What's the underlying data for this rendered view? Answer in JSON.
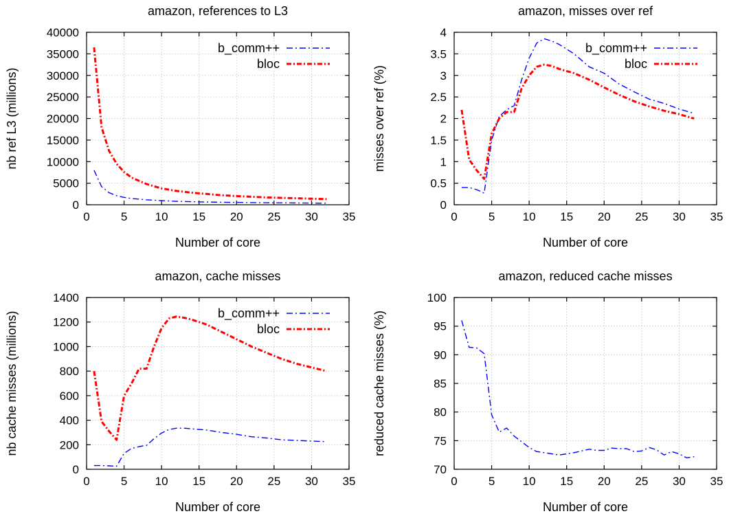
{
  "colors": {
    "b_comm": "#0000ff",
    "bloc": "#ff0000"
  },
  "chart_data": [
    {
      "type": "line",
      "title": "amazon, references to L3",
      "xlabel": "Number of core",
      "ylabel": "nb ref L3 (millions)",
      "xlim": [
        0,
        35
      ],
      "ylim": [
        0,
        40000
      ],
      "xticks": [
        0,
        5,
        10,
        15,
        20,
        25,
        30,
        35
      ],
      "yticks": [
        0,
        5000,
        10000,
        15000,
        20000,
        25000,
        30000,
        35000,
        40000
      ],
      "grid": true,
      "legend": "top-right",
      "series": [
        {
          "name": "b_comm++",
          "color": "#0000ff",
          "style": "dashdot",
          "x": [
            1,
            2,
            3,
            4,
            5,
            6,
            8,
            10,
            12,
            14,
            16,
            18,
            20,
            22,
            24,
            26,
            28,
            30,
            32
          ],
          "y": [
            8000,
            4200,
            2800,
            2100,
            1700,
            1450,
            1150,
            950,
            800,
            700,
            640,
            580,
            540,
            500,
            470,
            440,
            410,
            390,
            370
          ]
        },
        {
          "name": "bloc",
          "color": "#ff0000",
          "style": "dotdash-thick",
          "x": [
            1,
            2,
            3,
            4,
            5,
            6,
            8,
            10,
            12,
            14,
            16,
            18,
            20,
            22,
            24,
            26,
            28,
            30,
            32
          ],
          "y": [
            36500,
            18000,
            12500,
            9500,
            7600,
            6300,
            4800,
            3800,
            3200,
            2800,
            2500,
            2200,
            2000,
            1850,
            1700,
            1600,
            1500,
            1400,
            1300
          ]
        }
      ]
    },
    {
      "type": "line",
      "title": "amazon, misses over ref",
      "xlabel": "Number of core",
      "ylabel": "misses over ref (%)",
      "xlim": [
        0,
        35
      ],
      "ylim": [
        0,
        4
      ],
      "xticks": [
        0,
        5,
        10,
        15,
        20,
        25,
        30,
        35
      ],
      "yticks": [
        0,
        0.5,
        1,
        1.5,
        2,
        2.5,
        3,
        3.5,
        4
      ],
      "grid": true,
      "legend": "top-right",
      "series": [
        {
          "name": "b_comm++",
          "color": "#0000ff",
          "style": "dashdot",
          "x": [
            1,
            2,
            3,
            4,
            5,
            6,
            7,
            8,
            9,
            10,
            11,
            12,
            13,
            14,
            16,
            18,
            20,
            22,
            24,
            26,
            28,
            30,
            32
          ],
          "y": [
            0.4,
            0.4,
            0.35,
            0.27,
            1.5,
            2.05,
            2.2,
            2.3,
            2.9,
            3.4,
            3.75,
            3.85,
            3.8,
            3.72,
            3.5,
            3.2,
            3.05,
            2.8,
            2.62,
            2.45,
            2.35,
            2.22,
            2.12
          ]
        },
        {
          "name": "bloc",
          "color": "#ff0000",
          "style": "dotdash-thick",
          "x": [
            1,
            2,
            3,
            4,
            5,
            6,
            7,
            8,
            9,
            10,
            11,
            12,
            13,
            14,
            16,
            18,
            20,
            22,
            24,
            26,
            28,
            30,
            32
          ],
          "y": [
            2.2,
            1.05,
            0.8,
            0.6,
            1.65,
            2.0,
            2.15,
            2.15,
            2.7,
            3.0,
            3.2,
            3.25,
            3.22,
            3.15,
            3.05,
            2.9,
            2.72,
            2.55,
            2.4,
            2.28,
            2.18,
            2.1,
            2.0
          ]
        }
      ]
    },
    {
      "type": "line",
      "title": "amazon, cache misses",
      "xlabel": "Number of core",
      "ylabel": "nb cache misses (millions)",
      "xlim": [
        0,
        35
      ],
      "ylim": [
        0,
        1400
      ],
      "xticks": [
        0,
        5,
        10,
        15,
        20,
        25,
        30,
        35
      ],
      "yticks": [
        0,
        200,
        400,
        600,
        800,
        1000,
        1200,
        1400
      ],
      "grid": true,
      "legend": "top-right",
      "series": [
        {
          "name": "b_comm++",
          "color": "#0000ff",
          "style": "dashdot",
          "x": [
            1,
            2,
            3,
            4,
            5,
            6,
            7,
            8,
            9,
            10,
            11,
            12,
            13,
            14,
            16,
            18,
            20,
            22,
            24,
            26,
            28,
            30,
            32
          ],
          "y": [
            30,
            30,
            28,
            25,
            130,
            170,
            185,
            195,
            250,
            295,
            325,
            335,
            335,
            330,
            320,
            300,
            285,
            265,
            255,
            240,
            235,
            230,
            225
          ]
        },
        {
          "name": "bloc",
          "color": "#ff0000",
          "style": "dotdash-thick",
          "x": [
            1,
            2,
            3,
            4,
            5,
            6,
            7,
            8,
            9,
            10,
            11,
            12,
            13,
            14,
            16,
            18,
            20,
            22,
            24,
            26,
            28,
            30,
            32
          ],
          "y": [
            800,
            390,
            310,
            240,
            600,
            700,
            820,
            820,
            1000,
            1150,
            1230,
            1245,
            1235,
            1220,
            1180,
            1120,
            1060,
            1000,
            950,
            900,
            860,
            830,
            800
          ]
        }
      ]
    },
    {
      "type": "line",
      "title": "amazon, reduced cache misses",
      "xlabel": "Number of core",
      "ylabel": "reduced cache misses (%)",
      "xlim": [
        0,
        35
      ],
      "ylim": [
        70,
        100
      ],
      "xticks": [
        0,
        5,
        10,
        15,
        20,
        25,
        30,
        35
      ],
      "yticks": [
        70,
        75,
        80,
        85,
        90,
        95,
        100
      ],
      "grid": true,
      "legend": "none",
      "series": [
        {
          "name": "",
          "color": "#0000ff",
          "style": "dashdot",
          "x": [
            1,
            2,
            3,
            4,
            5,
            6,
            7,
            8,
            9,
            10,
            11,
            12,
            13,
            14,
            15,
            16,
            17,
            18,
            19,
            20,
            21,
            22,
            23,
            24,
            25,
            26,
            27,
            28,
            29,
            30,
            31,
            32
          ],
          "y": [
            96,
            91.3,
            91.2,
            90.2,
            79.5,
            76.5,
            77.2,
            75.8,
            74.8,
            73.8,
            73.1,
            72.9,
            72.7,
            72.5,
            72.7,
            72.9,
            73.2,
            73.5,
            73.3,
            73.3,
            73.7,
            73.6,
            73.6,
            73.1,
            73.2,
            73.8,
            73.4,
            72.5,
            73.1,
            72.7,
            72.0,
            72.2
          ]
        }
      ]
    }
  ]
}
